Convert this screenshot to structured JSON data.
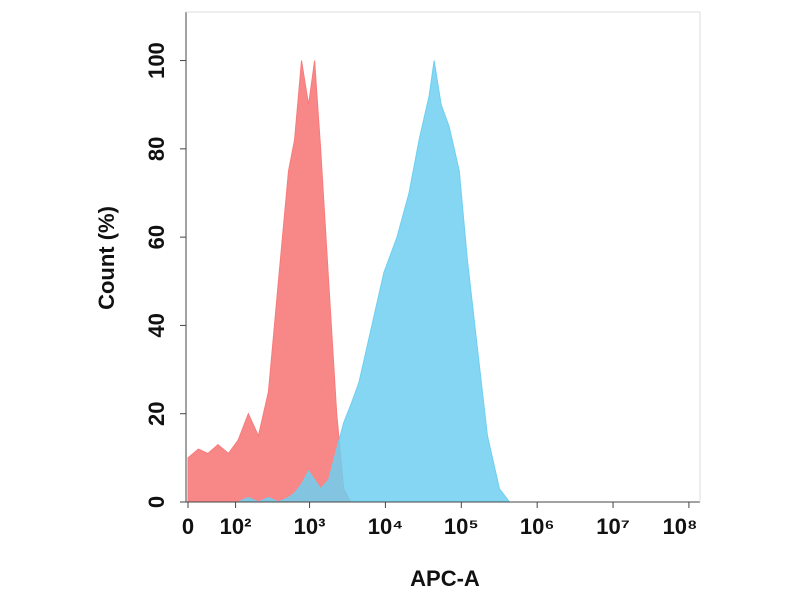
{
  "chart_data": {
    "type": "area",
    "x_label": "APC-A",
    "y_label": "Count  (%)",
    "x": [
      0,
      16,
      32,
      52,
      78,
      109,
      152,
      209,
      285,
      387,
      527,
      633,
      783,
      970,
      1165,
      1400,
      1785,
      2280,
      2820,
      3490,
      4460,
      5690,
      7040,
      9550,
      14200,
      20450,
      27750,
      37650,
      43850,
      54300,
      69300,
      94050,
      120000,
      162750,
      221000,
      318500,
      432000
    ],
    "series": [
      {
        "color": "#f77b7b",
        "values": [
          10,
          12,
          11,
          13,
          11,
          14,
          20,
          15,
          25,
          50,
          75,
          82,
          100,
          90,
          100,
          80,
          50,
          20,
          3,
          0,
          0,
          0,
          0,
          0,
          0,
          0,
          0,
          0,
          0,
          0,
          0,
          0,
          0,
          0,
          0,
          0,
          0
        ]
      },
      {
        "color": "#6fcff0",
        "values": [
          0,
          0,
          0,
          0,
          0,
          0,
          1,
          0,
          1,
          0,
          1,
          2,
          4,
          7,
          5,
          3,
          5,
          12,
          18,
          22,
          27,
          35,
          42,
          52,
          60,
          70,
          82,
          92,
          100,
          90,
          85,
          75,
          55,
          35,
          15,
          3,
          0
        ]
      }
    ],
    "xscale": "asinh",
    "xlim": [
      0,
      140000000
    ],
    "xticks": [
      0,
      {
        "value": 100,
        "label": "10²"
      },
      {
        "value": 1000,
        "label": "10³"
      },
      {
        "value": 10000,
        "label": "10⁴"
      },
      {
        "value": 100000,
        "label": "10⁵"
      },
      {
        "value": 1000000,
        "label": "10⁶"
      },
      {
        "value": 10000000,
        "label": "10⁷"
      },
      {
        "value": 100000000,
        "label": "10⁸"
      }
    ],
    "ylim": [
      0,
      111
    ],
    "yticks": [
      0,
      20,
      40,
      60,
      80,
      100
    ]
  }
}
